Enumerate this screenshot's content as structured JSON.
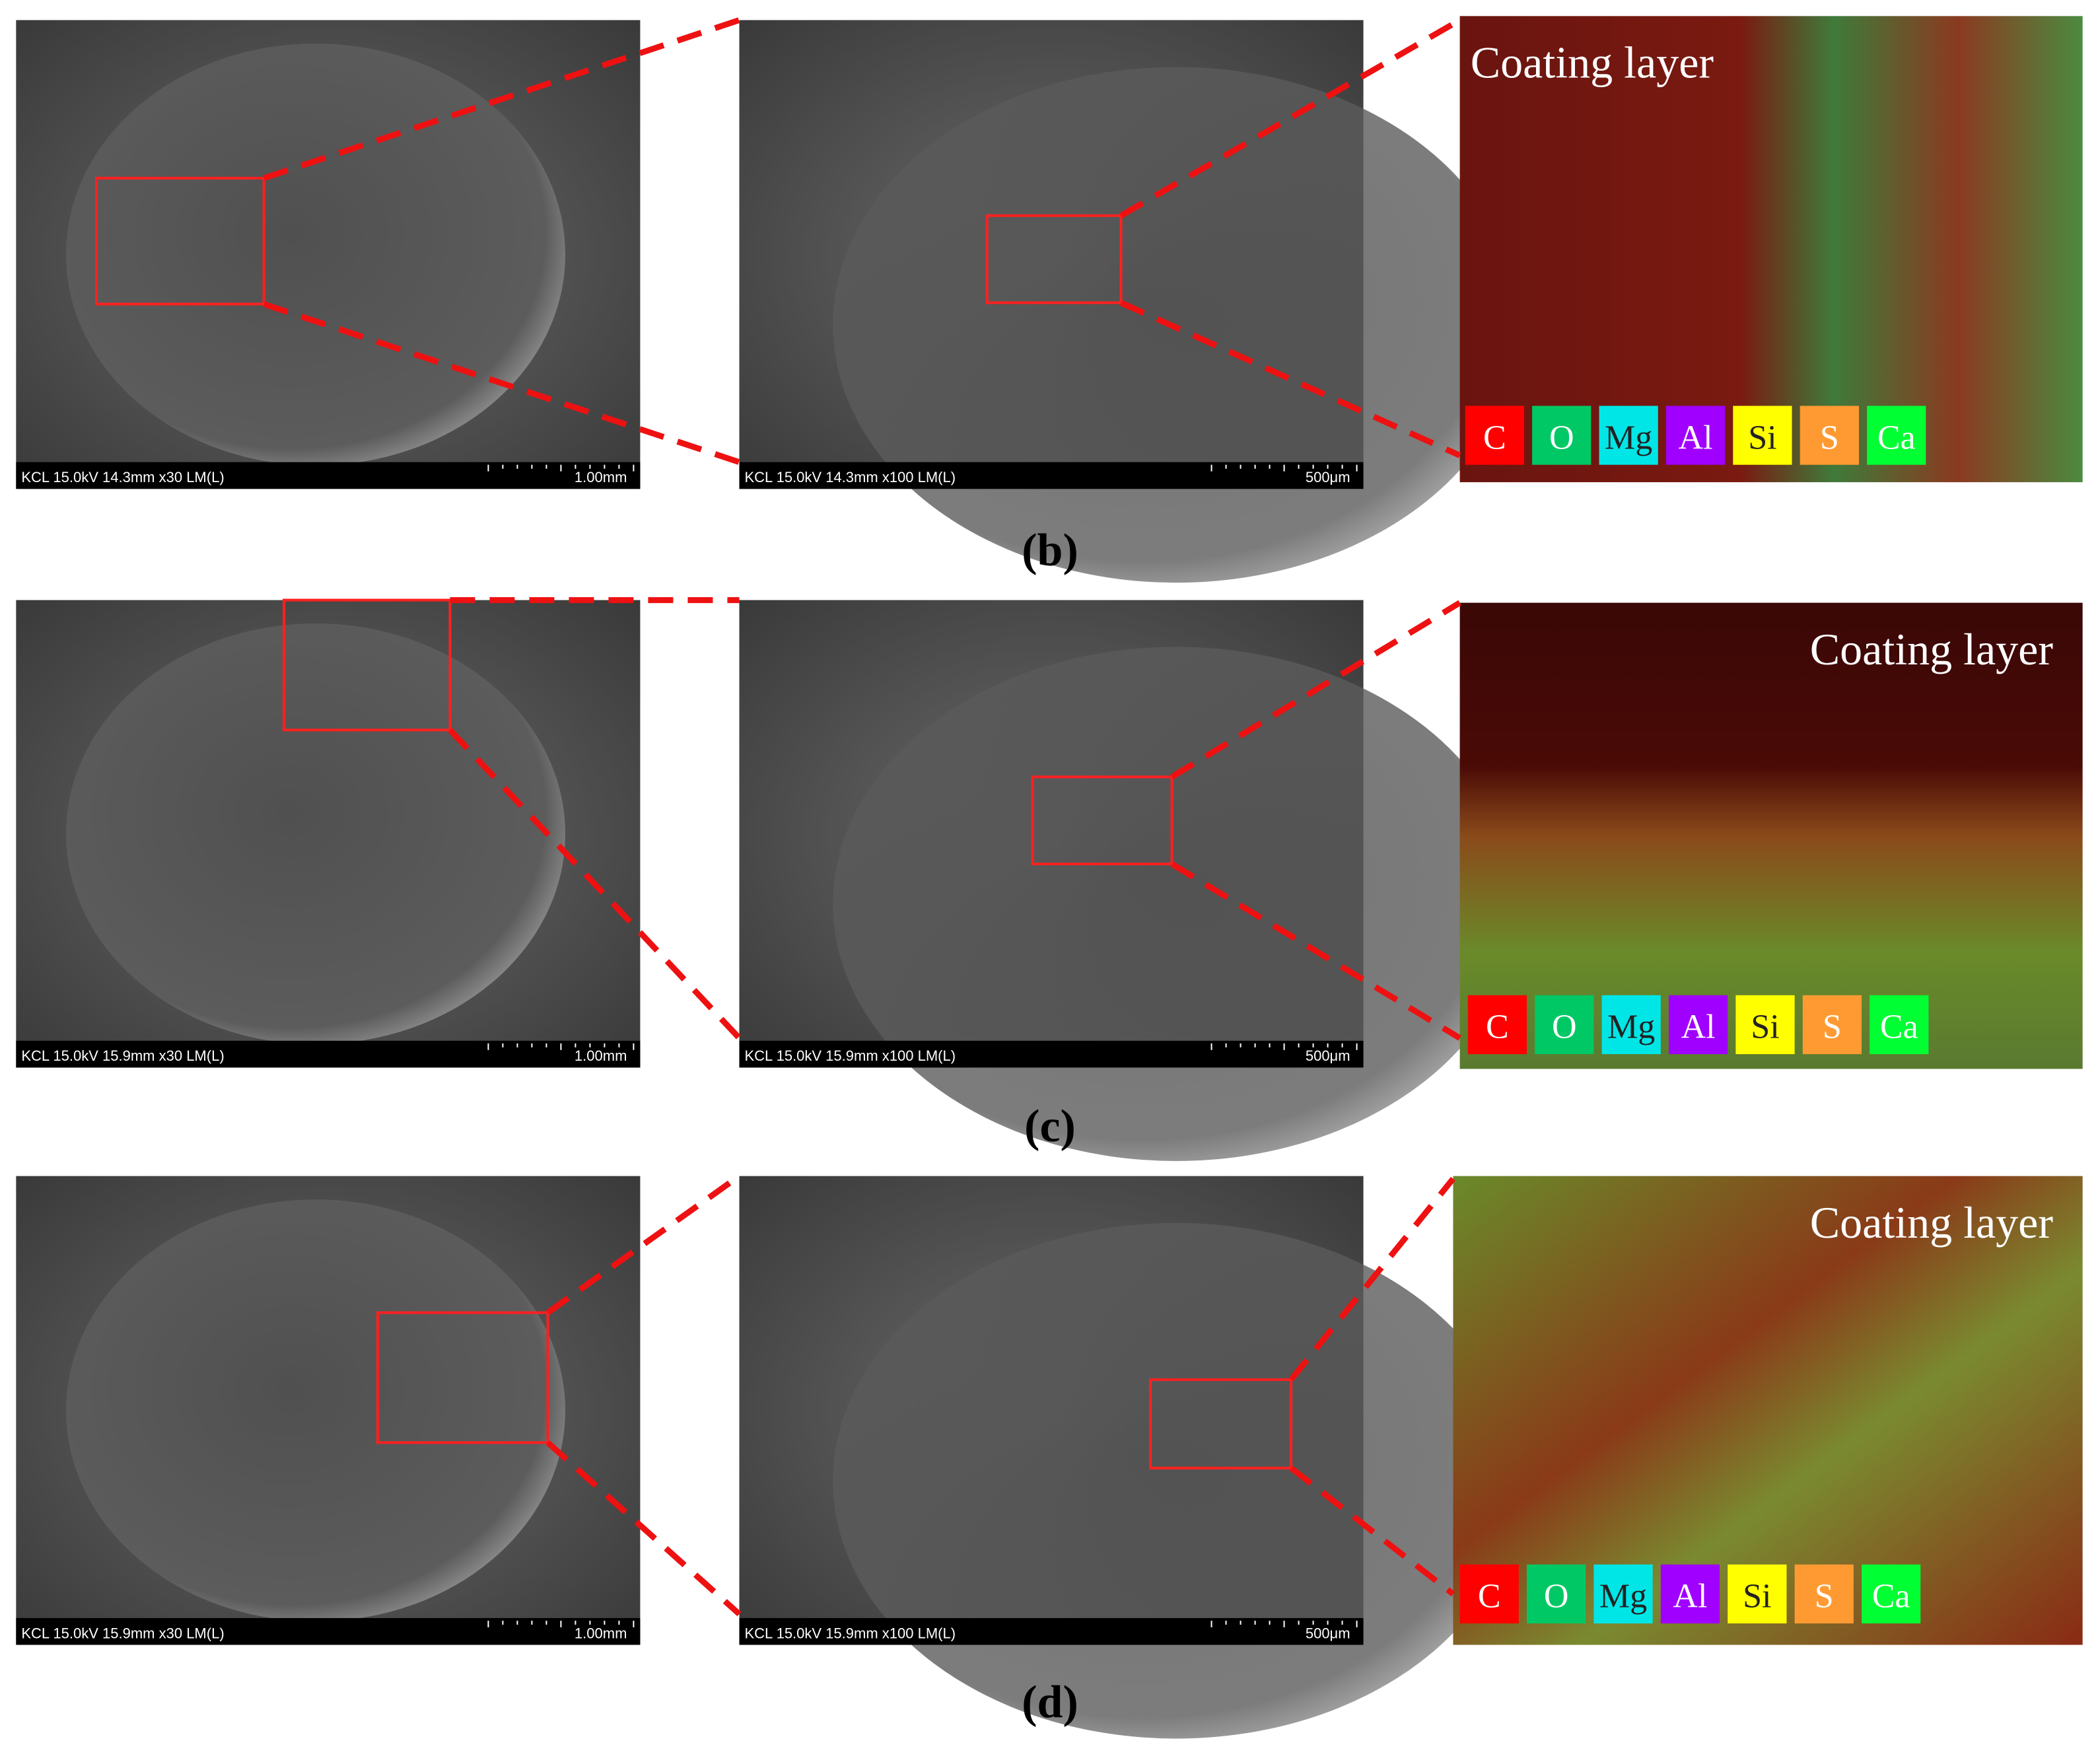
{
  "panels": [
    {
      "label": "(b)",
      "left": {
        "info": "KCL 15.0kV 14.3mm x30 LM(L)",
        "scale": "1.00mm"
      },
      "middle": {
        "info": "KCL 15.0kV 14.3mm x100 LM(L)",
        "scale": "500μm"
      },
      "eds": {
        "title": "Coating layer",
        "elements": [
          "C",
          "O",
          "Mg",
          "Al",
          "Si",
          "S",
          "Ca"
        ]
      }
    },
    {
      "label": "(c)",
      "left": {
        "info": "KCL 15.0kV 15.9mm x30 LM(L)",
        "scale": "1.00mm"
      },
      "middle": {
        "info": "KCL 15.0kV 15.9mm x100 LM(L)",
        "scale": "500μm"
      },
      "eds": {
        "title": "Coating layer",
        "elements": [
          "C",
          "O",
          "Mg",
          "Al",
          "Si",
          "S",
          "Ca"
        ]
      }
    },
    {
      "label": "(d)",
      "left": {
        "info": "KCL 15.0kV 15.9mm x30 LM(L)",
        "scale": "1.00mm"
      },
      "middle": {
        "info": "KCL 15.0kV 15.9mm x100 LM(L)",
        "scale": "500μm"
      },
      "eds": {
        "title": "Coating layer",
        "elements": [
          "C",
          "O",
          "Mg",
          "Al",
          "Si",
          "S",
          "Ca"
        ]
      }
    }
  ]
}
